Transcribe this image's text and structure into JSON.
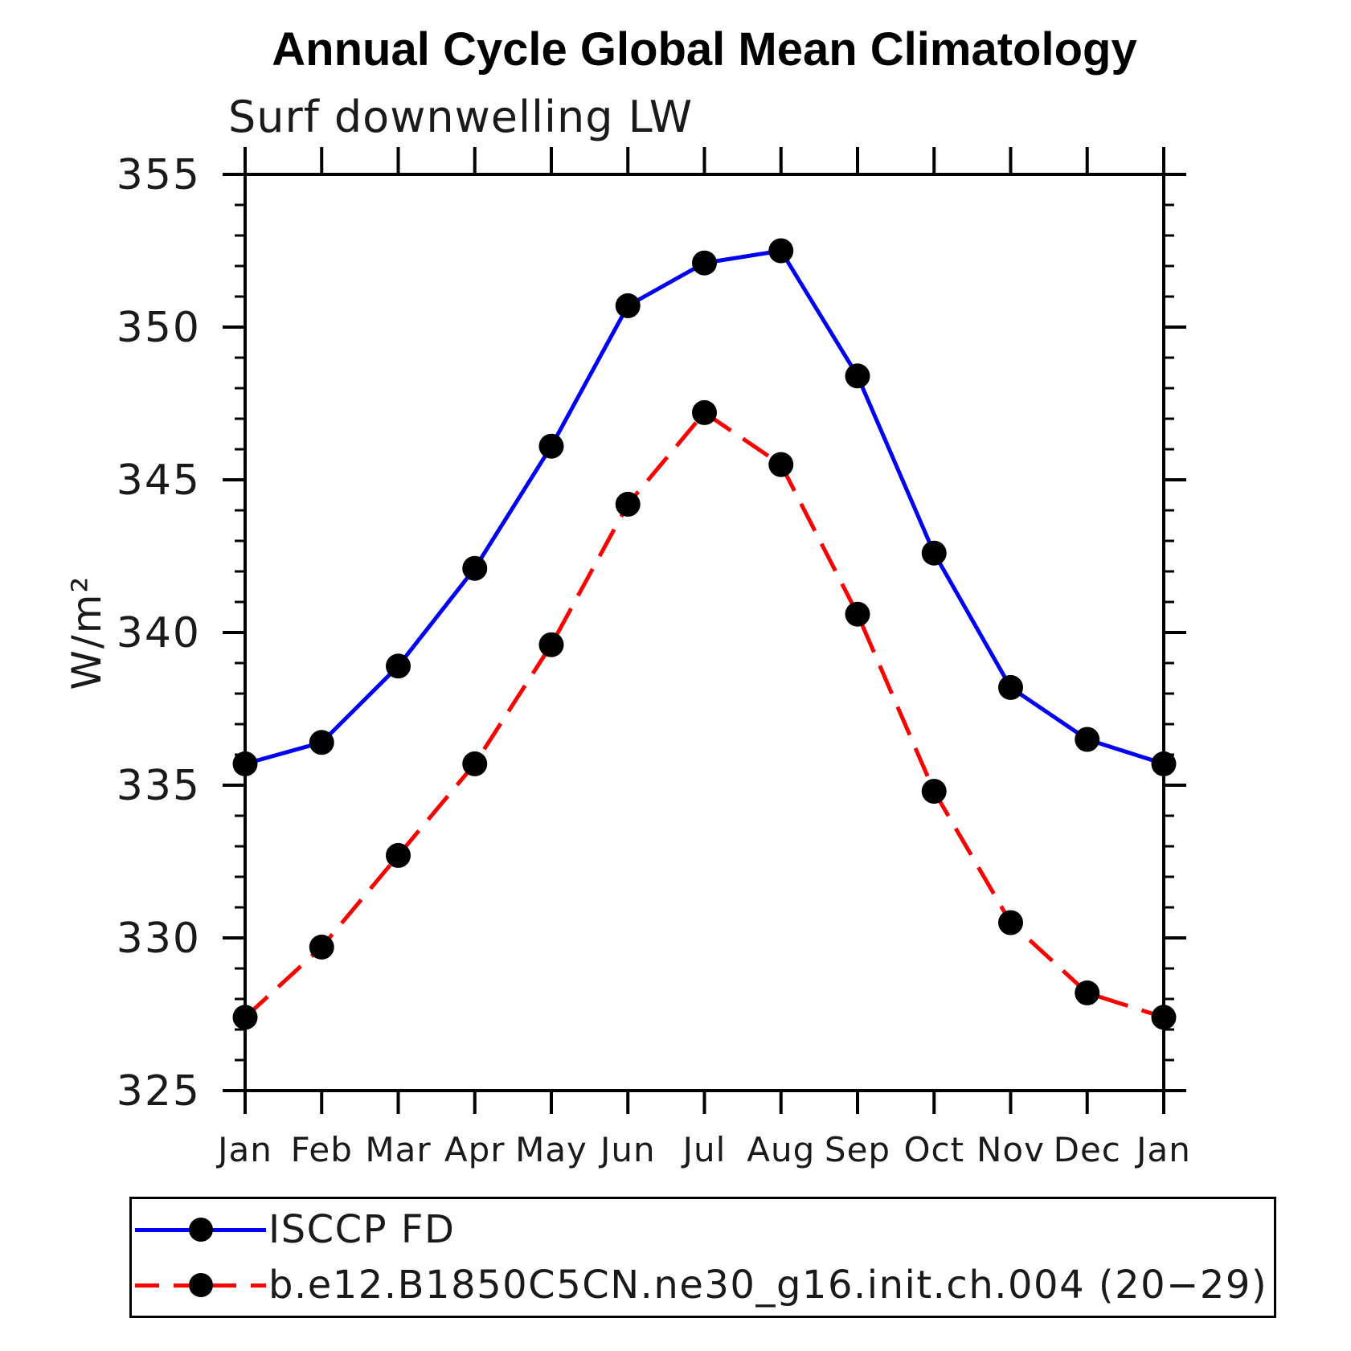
{
  "chart_data": {
    "type": "line",
    "title": "Annual Cycle Global Mean Climatology",
    "subtitle": "Surf downwelling LW",
    "ylabel": "W/m²",
    "xlabel": "",
    "x_tick_labels": [
      "Jan",
      "Feb",
      "Mar",
      "Apr",
      "May",
      "Jun",
      "Jul",
      "Aug",
      "Sep",
      "Oct",
      "Nov",
      "Dec",
      "Jan"
    ],
    "ylim": [
      325,
      355
    ],
    "y_major_tick_step": 5,
    "y_minor_tick_step": 1,
    "grid": false,
    "legend_position": "bottom-left box",
    "axis_color": "#000000",
    "series": [
      {
        "name": "ISCCP FD",
        "line_color": "#0000f5",
        "line_style": "solid",
        "marker": "filled-circle",
        "marker_color": "#000000",
        "values": [
          335.7,
          336.4,
          338.9,
          342.1,
          346.1,
          350.7,
          352.1,
          352.5,
          348.4,
          342.6,
          338.2,
          336.5,
          335.7
        ]
      },
      {
        "name": "b.e12.B1850C5CN.ne30_g16.init.ch.004 (20−29)",
        "line_color": "#fa0000",
        "line_style": "dashed",
        "marker": "filled-circle",
        "marker_color": "#000000",
        "values": [
          327.4,
          329.7,
          332.7,
          335.7,
          339.6,
          344.2,
          347.2,
          345.5,
          340.6,
          334.8,
          330.5,
          328.2,
          327.4
        ]
      }
    ]
  }
}
